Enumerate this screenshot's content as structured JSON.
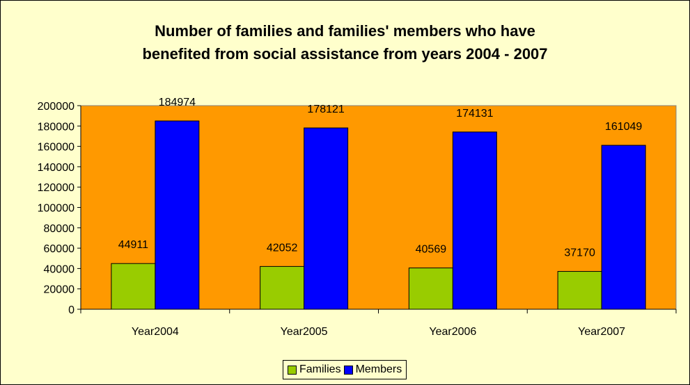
{
  "chart_data": {
    "type": "bar",
    "title_lines": [
      "Number of families and families' members who have",
      "benefited from social assistance from years 2004 - 2007"
    ],
    "categories": [
      "Year2004",
      "Year2005",
      "Year2006",
      "Year2007"
    ],
    "series": [
      {
        "name": "Families",
        "values": [
          44911,
          42052,
          40569,
          37170
        ],
        "color": "#99cc00"
      },
      {
        "name": "Members",
        "values": [
          184974,
          178121,
          174131,
          161049
        ],
        "color": "#0000ff"
      }
    ],
    "ylim": [
      0,
      200000
    ],
    "y_ticks": [
      0,
      20000,
      40000,
      60000,
      80000,
      100000,
      120000,
      140000,
      160000,
      180000,
      200000
    ],
    "y_tick_labels": [
      "0",
      "20000",
      "40000",
      "60000",
      "80000",
      "100000",
      "120000",
      "140000",
      "160000",
      "180000",
      "200000"
    ],
    "xlabel": "",
    "ylabel": "",
    "grid": false,
    "legend_position": "bottom",
    "plot_background": "#ff9900",
    "chart_background": "#ffffcc"
  }
}
